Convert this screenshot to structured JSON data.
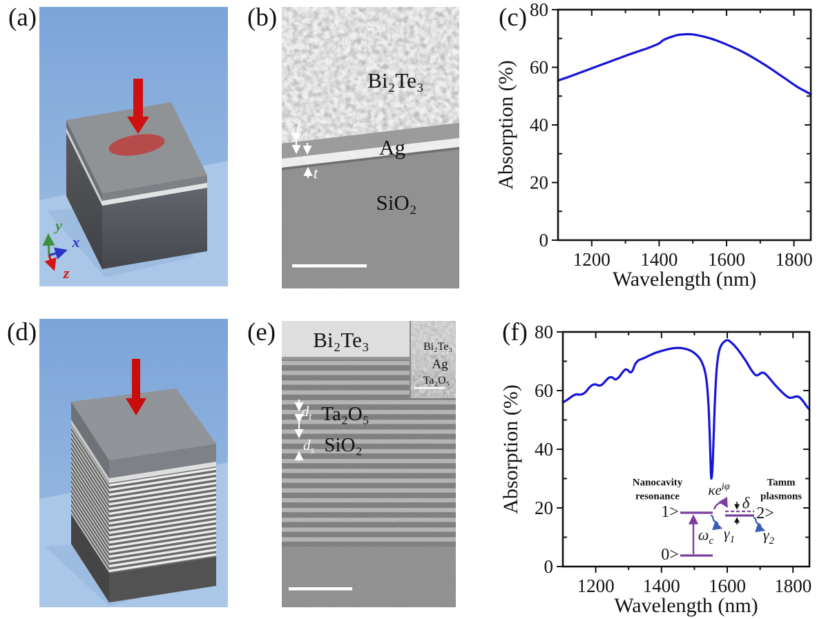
{
  "panels": {
    "a": {
      "label": "(a)",
      "axis_x": "x",
      "axis_y": "y",
      "axis_z": "z"
    },
    "b": {
      "label": "(b)",
      "bi2te3": "Bi₂Te₃",
      "ag": "Ag",
      "sio2": "SiO₂",
      "d": "d",
      "t": "t"
    },
    "c": {
      "label": "(c)"
    },
    "d": {
      "label": "(d)"
    },
    "e": {
      "label": "(e)",
      "bi2te3": "Bi₂Te₃",
      "ta2o5": "Ta₂O₅",
      "sio2": "SiO₂",
      "dt_base": "d",
      "dt_sub": "t",
      "ds_base": "d",
      "ds_sub": "s",
      "inset_bi2te3": "Bi₂Te₃",
      "inset_ag": "Ag",
      "inset_ta2o5": "Ta₂O₅"
    },
    "f": {
      "label": "(f)",
      "inset": {
        "nanocavity": "Nanocavity\nresonance",
        "tamm": "Tamm\nplasmons",
        "kappa_base": "κe",
        "kappa_sup": "iφ",
        "delta": "δ",
        "ket0": "0>",
        "ket1": "1>",
        "ket2": "2>",
        "omega_base": "ω",
        "omega_sub": "c",
        "gamma1_base": "γ",
        "gamma1_sub": "1",
        "gamma2_base": "γ",
        "gamma2_sub": "2"
      }
    }
  },
  "colors": {
    "curve": "#1414d8",
    "diagram_purple": "#7b3fa0",
    "diagram_blue": "#3a5fb5",
    "arrow_red": "#d01010",
    "axis_green": "#3f8f3f",
    "axis_blue": "#2a35c5",
    "axis_red": "#d41414"
  },
  "chart_data": [
    {
      "id": "c",
      "type": "line",
      "title": "",
      "xlabel": "Wavelength (nm)",
      "ylabel": "Absorption (%)",
      "x_range": [
        1100,
        1850
      ],
      "y_range": [
        0,
        80
      ],
      "x_ticks_major": [
        1200,
        1400,
        1600,
        1800
      ],
      "x_ticks_minor": [
        1300,
        1500,
        1700
      ],
      "y_ticks_major": [
        0,
        20,
        40,
        60,
        80
      ],
      "y_ticks_minor": [
        10,
        30,
        50,
        70
      ],
      "grid": false,
      "legend": false,
      "series": [
        {
          "name": "absorption",
          "color": "#1414d8",
          "x": [
            1100,
            1130,
            1160,
            1190,
            1220,
            1250,
            1280,
            1310,
            1340,
            1365,
            1385,
            1400,
            1412,
            1425,
            1440,
            1455,
            1470,
            1485,
            1500,
            1515,
            1530,
            1550,
            1570,
            1590,
            1610,
            1635,
            1660,
            1685,
            1710,
            1735,
            1760,
            1785,
            1810,
            1830,
            1850
          ],
          "y": [
            55.4,
            56.6,
            57.9,
            59.2,
            60.5,
            61.8,
            63.1,
            64.4,
            65.6,
            66.6,
            67.5,
            68.3,
            69.4,
            70.1,
            70.7,
            71.2,
            71.4,
            71.5,
            71.4,
            71.1,
            70.7,
            70.1,
            69.3,
            68.4,
            67.4,
            66.1,
            64.6,
            62.9,
            61.1,
            59.2,
            57.2,
            55.2,
            53.2,
            51.9,
            50.6
          ]
        }
      ]
    },
    {
      "id": "f",
      "type": "line",
      "title": "",
      "xlabel": "Wavelength (nm)",
      "ylabel": "Absorption (%)",
      "x_range": [
        1100,
        1850
      ],
      "y_range": [
        0,
        80
      ],
      "x_ticks_major": [
        1200,
        1400,
        1600,
        1800
      ],
      "x_ticks_minor": [
        1300,
        1500,
        1700
      ],
      "y_ticks_major": [
        0,
        20,
        40,
        60,
        80
      ],
      "y_ticks_minor": [
        10,
        30,
        50,
        70
      ],
      "grid": false,
      "legend": false,
      "series": [
        {
          "name": "absorption",
          "color": "#1414d8",
          "x": [
            1100,
            1110,
            1120,
            1130,
            1140,
            1150,
            1160,
            1170,
            1180,
            1190,
            1200,
            1210,
            1220,
            1230,
            1240,
            1250,
            1260,
            1270,
            1280,
            1290,
            1298,
            1305,
            1312,
            1320,
            1330,
            1345,
            1360,
            1380,
            1400,
            1420,
            1440,
            1460,
            1480,
            1495,
            1510,
            1520,
            1530,
            1537,
            1543,
            1547,
            1550,
            1552,
            1555,
            1558,
            1562,
            1567,
            1572,
            1578,
            1585,
            1595,
            1602,
            1610,
            1620,
            1630,
            1640,
            1650,
            1660,
            1670,
            1680,
            1688,
            1695,
            1703,
            1710,
            1718,
            1730,
            1745,
            1760,
            1775,
            1788,
            1800,
            1810,
            1820,
            1832,
            1842,
            1850
          ],
          "y": [
            56.0,
            56.6,
            57.4,
            58.2,
            58.7,
            58.6,
            58.8,
            59.6,
            61.0,
            61.9,
            62.1,
            61.7,
            62.1,
            63.3,
            64.4,
            64.5,
            63.8,
            64.5,
            66.0,
            67.2,
            66.9,
            66.2,
            66.8,
            69.0,
            70.3,
            71.0,
            71.8,
            72.8,
            73.5,
            74.1,
            74.5,
            74.5,
            74.0,
            73.2,
            71.8,
            70.3,
            67.5,
            63.5,
            55.0,
            44.0,
            33.0,
            30.0,
            33.5,
            42.0,
            55.0,
            66.0,
            71.5,
            74.5,
            76.0,
            77.0,
            77.2,
            76.6,
            75.6,
            74.3,
            72.8,
            71.2,
            69.5,
            67.6,
            66.0,
            65.2,
            65.4,
            66.0,
            66.1,
            65.5,
            64.0,
            62.0,
            60.2,
            58.6,
            57.6,
            57.7,
            58.0,
            57.7,
            56.2,
            54.6,
            53.6
          ]
        }
      ]
    }
  ]
}
